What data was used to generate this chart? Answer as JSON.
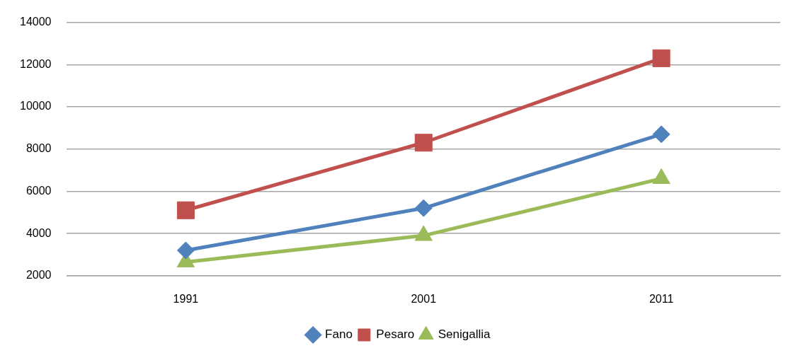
{
  "chart_data": {
    "type": "line",
    "categories": [
      "1991",
      "2001",
      "2011"
    ],
    "series": [
      {
        "name": "Fano",
        "color": "#4f81bd",
        "marker": "diamond",
        "values": [
          3200,
          5200,
          8700
        ]
      },
      {
        "name": "Pesaro",
        "color": "#c0504d",
        "marker": "square",
        "values": [
          5100,
          8300,
          12300
        ]
      },
      {
        "name": "Senigallia",
        "color": "#9bbb59",
        "marker": "triangle",
        "values": [
          2650,
          3900,
          6600
        ]
      }
    ],
    "ylim": [
      2000,
      14000
    ],
    "yticks": [
      2000,
      4000,
      6000,
      8000,
      10000,
      12000,
      14000
    ],
    "grid": "y",
    "legend": "bottom",
    "line_style": "solid"
  }
}
